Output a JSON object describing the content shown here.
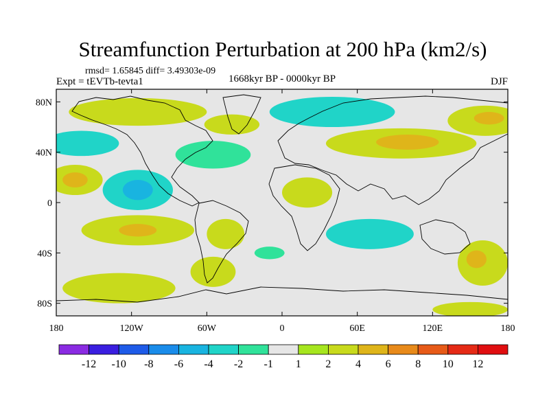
{
  "title": "Streamfunction Perturbation at 200 hPa (km2/s)",
  "stats": "rmsd= 1.65845  diff= 3.49303e-09",
  "experiment": "Expt = tEVTb-tevta1",
  "period": "1668kyr BP - 0000kyr BP",
  "season": "DJF",
  "map": {
    "projection": "cylindrical-equidistant",
    "lon_range": [
      -180,
      180
    ],
    "lat_range": [
      -90,
      90
    ],
    "x_ticks": [
      {
        "lon": -180,
        "label": "180"
      },
      {
        "lon": -120,
        "label": "120W"
      },
      {
        "lon": -60,
        "label": "60W"
      },
      {
        "lon": 0,
        "label": "0"
      },
      {
        "lon": 60,
        "label": "60E"
      },
      {
        "lon": 120,
        "label": "120E"
      },
      {
        "lon": 180,
        "label": "180"
      }
    ],
    "y_ticks": [
      {
        "lat": 80,
        "label": "80N"
      },
      {
        "lat": 40,
        "label": "40N"
      },
      {
        "lat": 0,
        "label": "0"
      },
      {
        "lat": -40,
        "label": "40S"
      },
      {
        "lat": -80,
        "label": "80S"
      }
    ],
    "background_color": "#e6e6e6",
    "anomalies": [
      {
        "id": "arctic-canada-pos",
        "lon": -115,
        "lat": 72,
        "rlon": 55,
        "rlat": 11,
        "value": 2
      },
      {
        "id": "russia-neg",
        "lon": 40,
        "lat": 72,
        "rlon": 50,
        "rlat": 12,
        "value": -3
      },
      {
        "id": "russia-core-neg",
        "lon": 35,
        "lat": 73,
        "rlon": 22,
        "rlat": 5,
        "value": -4
      },
      {
        "id": "greenland-pos",
        "lon": -40,
        "lat": 62,
        "rlon": 22,
        "rlat": 8,
        "value": 2
      },
      {
        "id": "npac-neg",
        "lon": -160,
        "lat": 47,
        "rlon": 30,
        "rlat": 10,
        "value": -3
      },
      {
        "id": "atlantic-neg",
        "lon": -55,
        "lat": 38,
        "rlon": 30,
        "rlat": 11,
        "value": -2
      },
      {
        "id": "asia-pos",
        "lon": 95,
        "lat": 47,
        "rlon": 60,
        "rlat": 12,
        "value": 3
      },
      {
        "id": "asia-core-pos",
        "lon": 100,
        "lat": 48,
        "rlon": 25,
        "rlat": 6,
        "value": 4
      },
      {
        "id": "nepac-pos",
        "lon": 162,
        "lat": 65,
        "rlon": 30,
        "rlat": 12,
        "value": 3
      },
      {
        "id": "nepac-core-pos",
        "lon": 165,
        "lat": 67,
        "rlon": 12,
        "rlat": 5,
        "value": 4
      },
      {
        "id": "tropical-pac-pos",
        "lon": -165,
        "lat": 18,
        "rlon": 22,
        "rlat": 12,
        "value": 3
      },
      {
        "id": "tropical-pac-core",
        "lon": -165,
        "lat": 18,
        "rlon": 10,
        "rlat": 6,
        "value": 5
      },
      {
        "id": "central-am-neg",
        "lon": -115,
        "lat": 10,
        "rlon": 28,
        "rlat": 16,
        "value": -3
      },
      {
        "id": "central-am-core",
        "lon": -115,
        "lat": 10,
        "rlon": 12,
        "rlat": 8,
        "value": -5
      },
      {
        "id": "africa-pos",
        "lon": 20,
        "lat": 8,
        "rlon": 20,
        "rlat": 12,
        "value": 2
      },
      {
        "id": "spac-pos",
        "lon": -115,
        "lat": -22,
        "rlon": 45,
        "rlat": 12,
        "value": 3
      },
      {
        "id": "spac-core",
        "lon": -115,
        "lat": -22,
        "rlon": 15,
        "rlat": 5,
        "value": 5
      },
      {
        "id": "samerica-pos",
        "lon": -45,
        "lat": -25,
        "rlon": 15,
        "rlat": 12,
        "value": 2
      },
      {
        "id": "satl-pos",
        "lon": -55,
        "lat": -55,
        "rlon": 18,
        "rlat": 12,
        "value": 3
      },
      {
        "id": "ind-neg",
        "lon": 70,
        "lat": -25,
        "rlon": 35,
        "rlat": 12,
        "value": -3
      },
      {
        "id": "ind-neg-core",
        "lon": 80,
        "lat": -27,
        "rlon": 15,
        "rlat": 6,
        "value": -4
      },
      {
        "id": "aus-pos",
        "lon": 160,
        "lat": -48,
        "rlon": 20,
        "rlat": 18,
        "value": 2
      },
      {
        "id": "aus-pos-core",
        "lon": 155,
        "lat": -45,
        "rlon": 8,
        "rlat": 7,
        "value": 4
      },
      {
        "id": "sopac-pos",
        "lon": 150,
        "lat": -85,
        "rlon": 30,
        "rlat": 6,
        "value": 2
      },
      {
        "id": "sopac-pos-w",
        "lon": -130,
        "lat": -68,
        "rlon": 45,
        "rlat": 12,
        "value": 2
      },
      {
        "id": "sind-neg",
        "lon": -10,
        "lat": -40,
        "rlon": 12,
        "rlat": 5,
        "value": -1.5
      }
    ]
  },
  "colorbar": {
    "boundaries": [
      "-12",
      "-10",
      "-8",
      "-6",
      "-4",
      "-2",
      "-1",
      "1",
      "2",
      "4",
      "6",
      "8",
      "10",
      "12"
    ],
    "colors": [
      "#8a2be2",
      "#3a1ee0",
      "#1e5be8",
      "#1a8cea",
      "#19b4e0",
      "#20d4c8",
      "#30e29a",
      "#e6e6e6",
      "#a6e61e",
      "#c8da1c",
      "#dfb51a",
      "#e88a1a",
      "#e75a18",
      "#e52a16",
      "#e00e10"
    ],
    "value_ranges": [
      [
        -14,
        -12
      ],
      [
        -12,
        -10
      ],
      [
        -10,
        -8
      ],
      [
        -8,
        -6
      ],
      [
        -6,
        -4
      ],
      [
        -4,
        -2
      ],
      [
        -2,
        -1
      ],
      [
        -1,
        1
      ],
      [
        1,
        2
      ],
      [
        2,
        4
      ],
      [
        4,
        6
      ],
      [
        6,
        8
      ],
      [
        8,
        10
      ],
      [
        10,
        12
      ],
      [
        12,
        14
      ]
    ]
  }
}
